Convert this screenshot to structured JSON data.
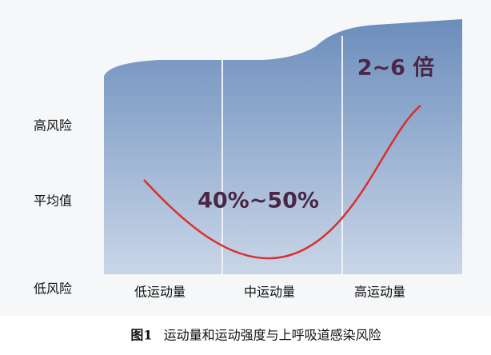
{
  "y_labels": [
    "高风险",
    "平均值",
    "低风险"
  ],
  "x_labels": [
    "低运动量",
    "中运动量",
    "高运动量"
  ],
  "annotations": [
    "40%~50%",
    "2~6 倍"
  ],
  "caption": {
    "number": "图1",
    "text": "运动量和运动强度与上呼吸道感染风险"
  }
}
